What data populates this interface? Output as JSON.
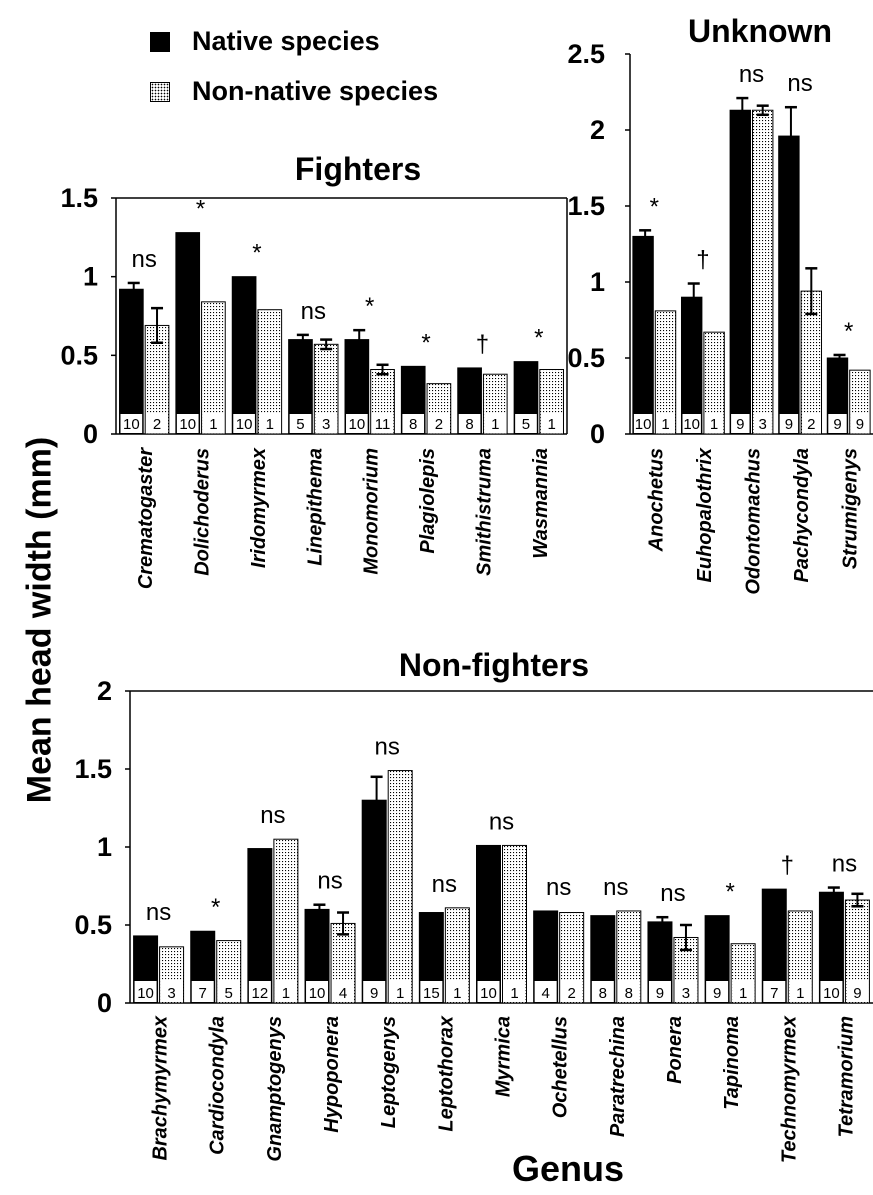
{
  "legend": [
    {
      "label": "Native species",
      "color": "#000000"
    },
    {
      "label": "Non-native species",
      "pattern": "dotted"
    }
  ],
  "ylabel": "Mean head width (mm)",
  "xlabel": "Genus",
  "chart_data": [
    {
      "type": "bar",
      "title": "Fighters",
      "ylim": [
        0,
        1.5
      ],
      "yticks": [
        "0",
        "0.5",
        "1",
        "1.5"
      ],
      "series_names": [
        "Native species",
        "Non-native species"
      ],
      "categories": [
        "Crematogaster",
        "Dolichoderus",
        "Iridomyrmex",
        "Linepithema",
        "Monomorium",
        "Plagiolepis",
        "Smithistruma",
        "Wasmannia"
      ],
      "native": [
        0.92,
        1.28,
        1.0,
        0.6,
        0.6,
        0.43,
        0.42,
        0.46
      ],
      "native_err": [
        0.04,
        0,
        0,
        0.03,
        0.06,
        0,
        0,
        0
      ],
      "nonnative": [
        0.69,
        0.84,
        0.79,
        0.57,
        0.41,
        0.32,
        0.38,
        0.41
      ],
      "nonnative_err": [
        0.11,
        0,
        0,
        0.03,
        0.03,
        0,
        0,
        0
      ],
      "n_native": [
        "10",
        "10",
        "10",
        "5",
        "10",
        "8",
        "8",
        "5"
      ],
      "n_nonnative": [
        "2",
        "1",
        "1",
        "3",
        "11",
        "2",
        "1",
        "1"
      ],
      "significance": [
        "ns",
        "*",
        "*",
        "ns",
        "*",
        "*",
        "†",
        "*"
      ]
    },
    {
      "type": "bar",
      "title": "Unknown",
      "ylim": [
        0,
        2.5
      ],
      "yticks": [
        "0",
        "0.5",
        "1",
        "1.5",
        "2",
        "2.5"
      ],
      "series_names": [
        "Native species",
        "Non-native species"
      ],
      "categories": [
        "Anochetus",
        "Euhopalothrix",
        "Odontomachus",
        "Pachycondyla",
        "Strumigenys"
      ],
      "native": [
        1.3,
        0.9,
        2.13,
        1.96,
        0.5
      ],
      "native_err": [
        0.04,
        0.09,
        0.08,
        0.19,
        0.02
      ],
      "nonnative": [
        0.81,
        0.67,
        2.13,
        0.94,
        0.42
      ],
      "nonnative_err": [
        0,
        0,
        0.03,
        0.15,
        0
      ],
      "n_native": [
        "10",
        "10",
        "9",
        "9",
        "9"
      ],
      "n_nonnative": [
        "1",
        "1",
        "3",
        "2",
        "9"
      ],
      "significance": [
        "*",
        "†",
        "ns",
        "ns",
        "*"
      ]
    },
    {
      "type": "bar",
      "title": "Non-fighters",
      "ylim": [
        0,
        2
      ],
      "yticks": [
        "0",
        "0.5",
        "1",
        "1.5",
        "2"
      ],
      "series_names": [
        "Native species",
        "Non-native species"
      ],
      "categories": [
        "Brachymyrmex",
        "Cardiocondyla",
        "Gnamptogenys",
        "Hypoponera",
        "Leptogenys",
        "Leptothorax",
        "Myrmica",
        "Ochetellus",
        "Paratrechina",
        "Ponera",
        "Tapinoma",
        "Technomyrmex",
        "Tetramorium"
      ],
      "native": [
        0.43,
        0.46,
        0.99,
        0.6,
        1.3,
        0.58,
        1.01,
        0.59,
        0.56,
        0.52,
        0.56,
        0.73,
        0.71
      ],
      "native_err": [
        0,
        0,
        0,
        0.03,
        0.15,
        0,
        0,
        0,
        0,
        0.03,
        0,
        0,
        0.03
      ],
      "nonnative": [
        0.36,
        0.4,
        1.05,
        0.51,
        1.49,
        0.61,
        1.01,
        0.58,
        0.59,
        0.42,
        0.38,
        0.59,
        0.66
      ],
      "nonnative_err": [
        0,
        0,
        0,
        0.07,
        0,
        0,
        0,
        0,
        0,
        0.08,
        0,
        0,
        0.04
      ],
      "n_native": [
        "10",
        "7",
        "12",
        "10",
        "9",
        "15",
        "10",
        "4",
        "8",
        "9",
        "9",
        "7",
        "10"
      ],
      "n_nonnative": [
        "3",
        "5",
        "1",
        "4",
        "1",
        "1",
        "1",
        "2",
        "8",
        "3",
        "1",
        "1",
        "9"
      ],
      "significance": [
        "ns",
        "*",
        "ns",
        "ns",
        "ns",
        "ns",
        "ns",
        "ns",
        "ns",
        "ns",
        "*",
        "†",
        "ns"
      ]
    }
  ]
}
